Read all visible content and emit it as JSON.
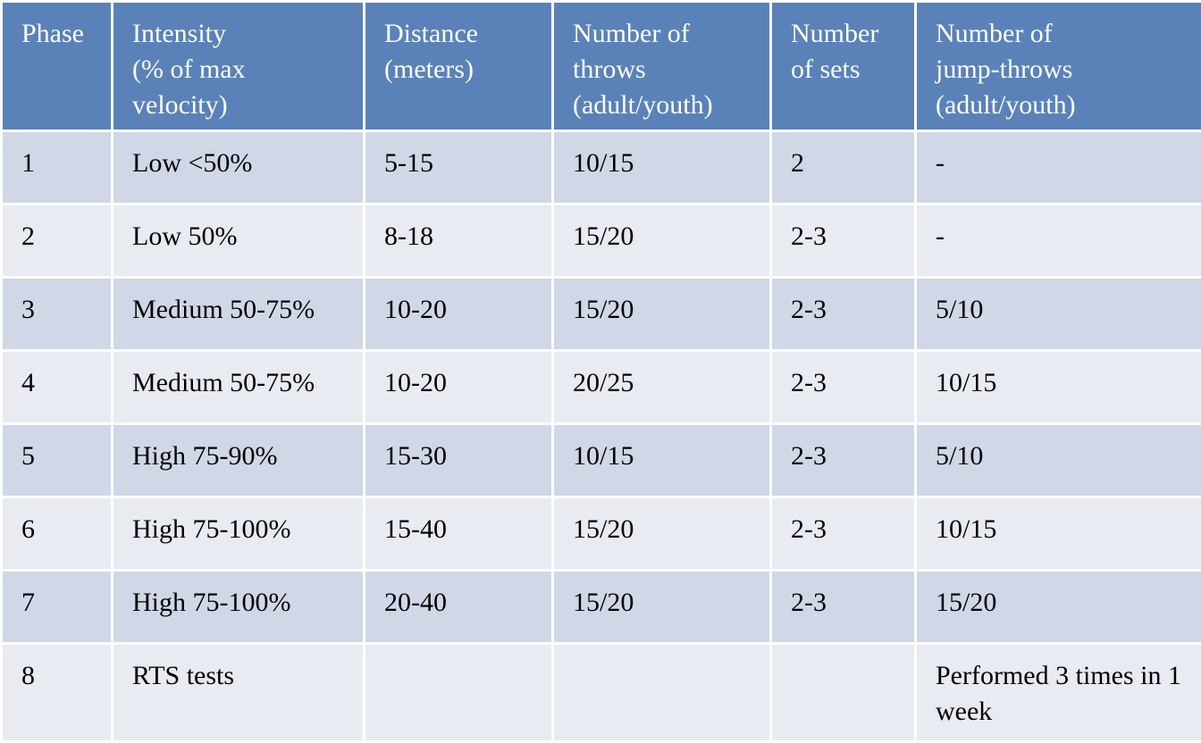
{
  "table": {
    "headers": [
      [
        "Phase"
      ],
      [
        "Intensity",
        "(% of max",
        "velocity)"
      ],
      [
        "Distance",
        "(meters)"
      ],
      [
        "Number of",
        "throws",
        "(adult/youth)"
      ],
      [
        "Number",
        "of sets"
      ],
      [
        "Number of",
        "jump-throws",
        "(adult/youth)"
      ]
    ],
    "rows": [
      [
        "1",
        "Low <50%",
        "5-15",
        "10/15",
        "2",
        "-"
      ],
      [
        "2",
        "Low 50%",
        "8-18",
        "15/20",
        "2-3",
        "-"
      ],
      [
        "3",
        "Medium 50-75%",
        "10-20",
        "15/20",
        "2-3",
        "5/10"
      ],
      [
        "4",
        "Medium 50-75%",
        "10-20",
        "20/25",
        "2-3",
        "10/15"
      ],
      [
        "5",
        "High 75-90%",
        "15-30",
        "10/15",
        "2-3",
        "5/10"
      ],
      [
        "6",
        "High 75-100%",
        "15-40",
        "15/20",
        "2-3",
        "10/15"
      ],
      [
        "7",
        "High 75-100%",
        "20-40",
        "15/20",
        "2-3",
        "15/20"
      ],
      [
        "8",
        "RTS tests",
        "",
        "",
        "",
        "Performed 3 times in 1 week"
      ]
    ],
    "colors": {
      "header_bg": "#5a82b8",
      "row_dark": "#d0d7e6",
      "row_light": "#e8ebf2",
      "border": "#ffffff"
    }
  }
}
